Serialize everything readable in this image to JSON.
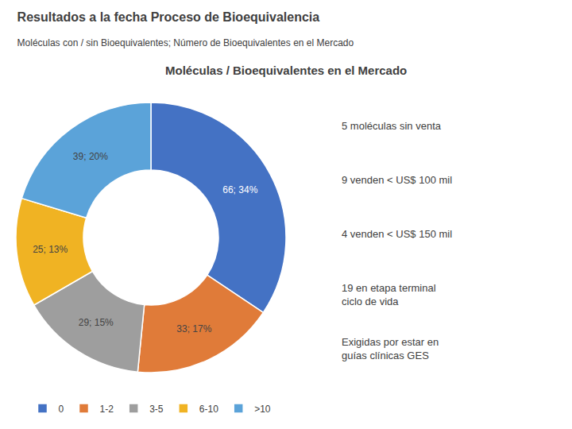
{
  "chart_data": {
    "type": "donut",
    "title": "Resultados a la fecha Proceso de Bioequivalencia",
    "subtitle": "Moléculas con / sin Bioequivalentes; Número de Bioequivalentes en el Mercado",
    "chart_title": "Moléculas / Bioequivalentes en el Mercado",
    "categories": [
      "0",
      "1-2",
      "3-5",
      "6-10",
      ">10"
    ],
    "values": [
      66,
      33,
      29,
      25,
      39
    ],
    "value_labels": [
      "66; 34%",
      "33; 17%",
      "29; 15%",
      "25; 13%",
      "39; 20%"
    ],
    "data_labels": true,
    "colors": [
      "#4472C4",
      "#E07B39",
      "#9E9E9E",
      "#F0B323",
      "#5BA3D9"
    ],
    "legend": "bottom",
    "annotations": [
      "5 moléculas sin venta",
      "9 venden < US$ 100 mil",
      "4 venden < US$ 150 mil",
      "19 en etapa terminal\nciclo de vida",
      "Exigidas por estar en\nguías clínicas GES"
    ]
  }
}
